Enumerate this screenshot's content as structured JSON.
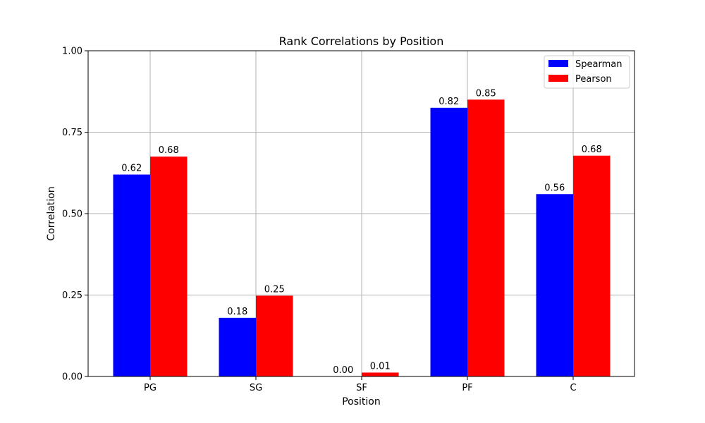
{
  "chart_data": {
    "type": "bar",
    "title": "Rank Correlations by Position",
    "xlabel": "Position",
    "ylabel": "Correlation",
    "categories": [
      "PG",
      "SG",
      "SF",
      "PF",
      "C"
    ],
    "ylim": [
      0,
      1.0
    ],
    "yticks": [
      0.0,
      0.25,
      0.5,
      0.75,
      1.0
    ],
    "ytick_labels": [
      "0.00",
      "0.25",
      "0.50",
      "0.75",
      "1.00"
    ],
    "grid": true,
    "legend_position": "top-right",
    "series": [
      {
        "name": "Spearman",
        "color": "#0000ff",
        "values": [
          0.62,
          0.18,
          0.0,
          0.825,
          0.56
        ],
        "labels": [
          "0.62",
          "0.18",
          "0.00",
          "0.82",
          "0.56"
        ]
      },
      {
        "name": "Pearson",
        "color": "#ff0000",
        "values": [
          0.675,
          0.248,
          0.012,
          0.85,
          0.678
        ],
        "labels": [
          "0.68",
          "0.25",
          "0.01",
          "0.85",
          "0.68"
        ]
      }
    ]
  }
}
